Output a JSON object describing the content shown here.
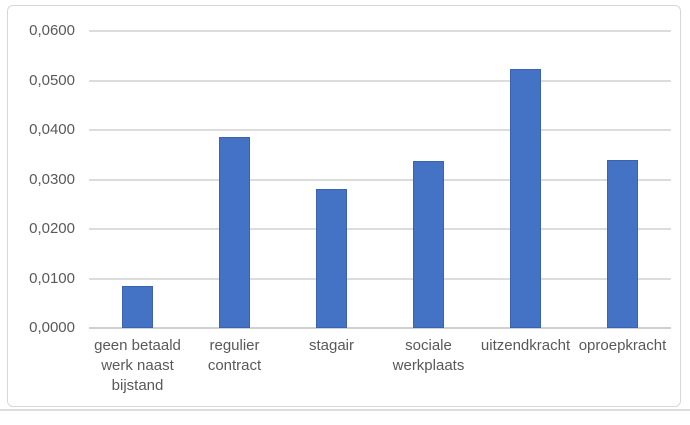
{
  "chart_data": {
    "type": "bar",
    "title": "",
    "categories": [
      "geen betaald werk naast bijstand",
      "regulier contract",
      "stagair",
      "sociale werkplaats",
      "uitzendkracht",
      "oproepkracht"
    ],
    "values": [
      0.0084,
      0.0386,
      0.0281,
      0.0337,
      0.0524,
      0.0339
    ],
    "y_ticks": [
      "0,0000",
      "0,0100",
      "0,0200",
      "0,0300",
      "0,0400",
      "0,0500",
      "0,0600"
    ],
    "ylim": [
      0,
      0.06
    ],
    "y_tick_step": 0.01,
    "decimal_separator": ",",
    "xlabel": "",
    "ylabel": "",
    "legend": "none",
    "grid": "horizontal",
    "colors": {
      "bar": "#4472C4",
      "bar_border": "#3B62AE",
      "gridline": "#DCDCDC",
      "axis_line": "#D0D0D0",
      "text": "#595959",
      "frame_border": "#D7D7D7"
    }
  }
}
